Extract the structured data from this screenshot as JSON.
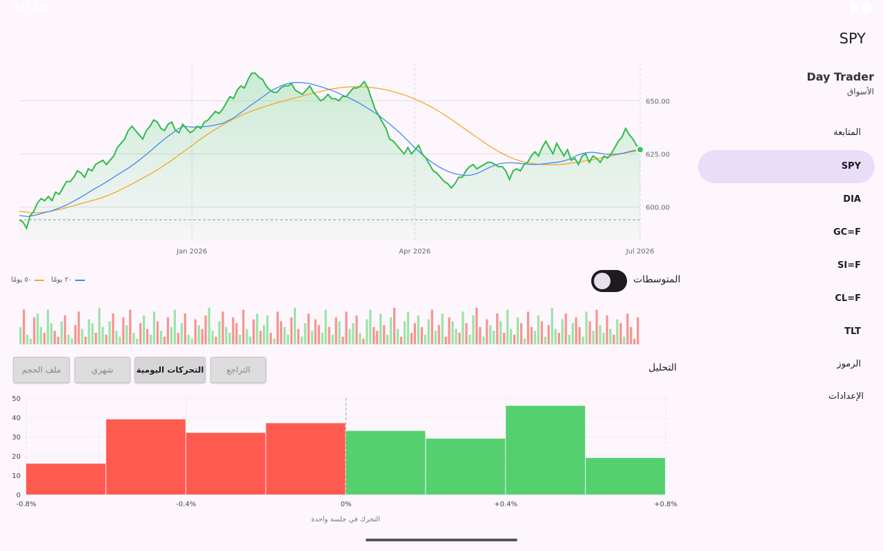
{
  "status": {
    "time": "8:11 AM"
  },
  "sidebar": {
    "page_title": "SPY",
    "brand_title": "Day Trader",
    "brand_sub": "الأسواق",
    "items": [
      {
        "label": "المتابعة",
        "active": false
      },
      {
        "label": "SPY",
        "active": true
      },
      {
        "label": "DIA",
        "active": false
      },
      {
        "label": "GC=F",
        "active": false
      },
      {
        "label": "SI=F",
        "active": false
      },
      {
        "label": "CL=F",
        "active": false
      },
      {
        "label": "TLT",
        "active": false
      },
      {
        "label": "الرموز",
        "active": false
      },
      {
        "label": "الإعدادات",
        "active": false
      }
    ]
  },
  "legend": {
    "ma50": "٥٠ يومًا",
    "ma20": "٢٠ يومًا",
    "ma50_color": "#f5a623",
    "ma20_color": "#4285f4"
  },
  "moving_averages": {
    "label": "المتوسطات",
    "enabled": true
  },
  "analysis": {
    "label": "التحليل",
    "chips": [
      {
        "label": "التراجع",
        "selected": false
      },
      {
        "label": "التحركات اليومية",
        "selected": true
      },
      {
        "label": "شهري",
        "selected": false
      },
      {
        "label": "ملف الحجم",
        "selected": false
      }
    ]
  },
  "colors": {
    "up": "#34c759",
    "down": "#ff3b30",
    "price_line": "#2dbb4a"
  },
  "chart_data": [
    {
      "type": "line",
      "x_tick_labels": [
        "Jan 2026",
        "Apr 2026",
        "Jul 2026"
      ],
      "y_tick_labels": [
        "600.00",
        "625.00",
        "650.00"
      ],
      "ylim": [
        584,
        665
      ],
      "reference_line": 594,
      "series": [
        {
          "name": "",
          "values": [
            594,
            593,
            590,
            596,
            598,
            602,
            604,
            603,
            605,
            603,
            607,
            606,
            609,
            612,
            612,
            614,
            617,
            616,
            614,
            618,
            617,
            620,
            621,
            622,
            620,
            622,
            624,
            628,
            630,
            632,
            636,
            638,
            636,
            634,
            632,
            636,
            638,
            641,
            640,
            637,
            636,
            639,
            640,
            636,
            635,
            639,
            637,
            635,
            636,
            638,
            637,
            640,
            641,
            643,
            645,
            644,
            646,
            649,
            652,
            651,
            655,
            657,
            656,
            660,
            663,
            663,
            661,
            660,
            657,
            655,
            654,
            654,
            656,
            657,
            657,
            658,
            655,
            654,
            653,
            655,
            657,
            654,
            652,
            650,
            651,
            653,
            651,
            651,
            650,
            652,
            652,
            654,
            656,
            656,
            657,
            659,
            656,
            651,
            646,
            643,
            640,
            637,
            632,
            631,
            629,
            627,
            625,
            628,
            625,
            627,
            629,
            625,
            623,
            620,
            617,
            616,
            614,
            612,
            611,
            609,
            611,
            614,
            614,
            617,
            619,
            620,
            618,
            619,
            620,
            621,
            621,
            620,
            619,
            619,
            617,
            613,
            617,
            618,
            617,
            620,
            621,
            624,
            626,
            624,
            628,
            631,
            628,
            625,
            630,
            627,
            624,
            627,
            622,
            623,
            620,
            624,
            625,
            621,
            624,
            623,
            621,
            624,
            623,
            625,
            628,
            631,
            633,
            637,
            634,
            632,
            629,
            627
          ]
        },
        {
          "name": "",
          "values": [
            596,
            595.8,
            595.5,
            596,
            596.4,
            597,
            597.6,
            598,
            598.8,
            599.5,
            600.4,
            601.3,
            602.5,
            603.6,
            604.8,
            606,
            607.4,
            608.6,
            609.8,
            611,
            612.3,
            613.6,
            615,
            616.3,
            617.5,
            618.9,
            620.4,
            622,
            623.7,
            625.4,
            627.2,
            629,
            630.8,
            632.4,
            634,
            635.5,
            637,
            638,
            637.8,
            637.6,
            637.7,
            637.8,
            637.9,
            638.1,
            638.5,
            639,
            639.5,
            640.5,
            641.5,
            643,
            644.5,
            646,
            647.6,
            649,
            650.5,
            652,
            653.5,
            655,
            656,
            657,
            657.8,
            658.3,
            658.6,
            658.6,
            658.5,
            658.2,
            657.8,
            657.2,
            656.6,
            655.9,
            655.2,
            654.4,
            653.5,
            652.6,
            651.7,
            650.7,
            649.6,
            648.5,
            647.2,
            645.9,
            644.6,
            643.2,
            641.6,
            639.9,
            638.2,
            636.4,
            634.5,
            632.5,
            630.4,
            628.3,
            626.3,
            624.4,
            622.7,
            621.1,
            619.7,
            618.5,
            617.4,
            616.5,
            615.8,
            615.3,
            615,
            614.8,
            615.1,
            615.7,
            616.5,
            617.6,
            618.6,
            619.5,
            620.2,
            620.6,
            620.8,
            620.8,
            620.7,
            620.5,
            620.3,
            620.1,
            620,
            620.1,
            620.3,
            620.5,
            620.8,
            621,
            621.3,
            621.8,
            622.5,
            623.5,
            624.5,
            625.2,
            625.6,
            625.8,
            625.6,
            625.3,
            625,
            624.8,
            624.8,
            625,
            625.3,
            625.8,
            626.3,
            626.7,
            627
          ]
        },
        {
          "name": "",
          "values": [
            598,
            597.7,
            597.4,
            597.3,
            597.4,
            597.7,
            598.1,
            598.6,
            599.2,
            599.9,
            600.6,
            601.3,
            602,
            602.7,
            603.4,
            604.2,
            605.1,
            606.1,
            607.2,
            608.4,
            609.7,
            611,
            612.4,
            613.8,
            615.2,
            616.6,
            618.2,
            619.9,
            621.6,
            623.4,
            625.3,
            627.1,
            629,
            630.9,
            632.7,
            634.4,
            636.1,
            637.6,
            639.1,
            640.5,
            641.8,
            643,
            644.1,
            645.1,
            646,
            646.9,
            647.7,
            648.5,
            649.2,
            649.9,
            650.6,
            651.3,
            652,
            652.6,
            653.3,
            653.9,
            654.5,
            655.1,
            655.6,
            656,
            656.3,
            656.5,
            656.6,
            656.6,
            656.5,
            656.3,
            656,
            655.6,
            655.1,
            654.5,
            653.8,
            653,
            652.1,
            651.1,
            650,
            648.8,
            647.5,
            646.1,
            644.6,
            643,
            641.3,
            639.5,
            637.7,
            635.9,
            634.1,
            632.3,
            630.6,
            628.9,
            627.3,
            625.8,
            624.5,
            623.3,
            622.3,
            621.5,
            620.9,
            620.5,
            620.2,
            620,
            619.9,
            619.9,
            620,
            620.2,
            620.5,
            620.9,
            621.3,
            621.8,
            622.2,
            622.7,
            623.2,
            623.7,
            624.3,
            624.8,
            625.3,
            625.8,
            626.2,
            626.5
          ]
        }
      ]
    },
    {
      "type": "bar",
      "values": [
        0.45,
        0.9,
        0.25,
        0.15,
        0.7,
        0.8,
        0.45,
        0.3,
        0.9,
        0.55,
        0.35,
        0.2,
        0.6,
        0.75,
        0.25,
        0.15,
        0.5,
        0.85,
        0.4,
        0.2,
        0.65,
        0.55,
        0.3,
        0.95,
        0.45,
        0.25,
        0.6,
        0.8,
        0.35,
        0.2,
        0.7,
        0.5,
        0.9,
        0.3,
        0.15,
        0.55,
        0.75,
        0.4,
        0.25,
        0.85,
        0.6,
        0.35,
        0.2,
        0.7,
        0.45,
        0.9,
        0.3,
        0.55,
        0.8,
        0.25,
        0.15,
        0.65,
        0.5,
        0.4,
        0.75,
        0.95,
        0.35,
        0.2,
        0.6,
        0.85,
        0.45,
        0.3,
        0.7,
        0.55,
        0.25,
        0.9,
        0.4,
        0.2,
        0.65,
        0.8,
        0.35,
        0.5,
        0.75,
        0.3,
        0.15,
        0.85,
        0.6,
        0.45,
        0.25,
        0.7,
        0.95,
        0.4,
        0.2,
        0.55,
        0.8,
        0.35,
        0.65,
        0.5,
        0.3,
        0.9,
        0.45,
        0.25,
        0.7,
        0.6,
        0.2,
        0.85,
        0.4,
        0.55,
        0.75,
        0.3,
        0.15,
        0.65,
        0.9,
        0.45,
        0.35,
        0.8,
        0.5,
        0.25,
        0.7,
        0.95,
        0.4,
        0.2,
        0.6,
        0.85,
        0.3,
        0.55,
        0.75,
        0.45,
        0.25,
        0.65,
        0.9,
        0.35,
        0.5,
        0.8,
        0.2,
        0.7,
        0.6,
        0.4,
        0.3,
        0.85,
        0.55,
        0.25,
        0.75,
        0.95,
        0.45,
        0.2,
        0.65,
        0.5,
        0.35,
        0.8,
        0.6,
        0.3,
        0.9,
        0.4,
        0.25,
        0.7,
        0.55,
        0.15,
        0.85,
        0.45,
        0.35,
        0.75,
        0.6,
        0.2,
        0.5,
        0.95,
        0.4,
        0.3,
        0.65,
        0.8,
        0.25,
        0.55,
        0.7,
        0.45,
        0.2,
        0.85,
        0.6,
        0.35,
        0.9,
        0.5,
        0.3,
        0.75,
        0.4,
        0.25,
        0.65,
        0.55,
        0.2,
        0.8,
        0.45,
        0.15,
        0.7
      ],
      "up": [
        1,
        0,
        1,
        1,
        0,
        1,
        1,
        0,
        1,
        1,
        0,
        0,
        1,
        0,
        1,
        1,
        0,
        0,
        1,
        0,
        1,
        1,
        0,
        1,
        1,
        0,
        1,
        0,
        1,
        1,
        0,
        1,
        0,
        1,
        1,
        0,
        1,
        0,
        1,
        1,
        0,
        1,
        0,
        0,
        1,
        1,
        0,
        1,
        0,
        1,
        1,
        0,
        1,
        0,
        0,
        1,
        1,
        0,
        1,
        0,
        1,
        1,
        0,
        0,
        1,
        0,
        1,
        1,
        0,
        1,
        0,
        1,
        1,
        0,
        1,
        0,
        0,
        1,
        1,
        0,
        1,
        0,
        1,
        1,
        0,
        1,
        0,
        0,
        1,
        1,
        0,
        1,
        0,
        1,
        0,
        0,
        1,
        1,
        0,
        1,
        0,
        1,
        1,
        0,
        0,
        1,
        0,
        1,
        1,
        0,
        1,
        0,
        1,
        1,
        0,
        0,
        1,
        0,
        1,
        1,
        0,
        1,
        0,
        1,
        0,
        0,
        1,
        1,
        0,
        1,
        0,
        1,
        1,
        0,
        0,
        1,
        0,
        1,
        1,
        0,
        1,
        0,
        1,
        1,
        0,
        1,
        0,
        1,
        0,
        0,
        1,
        1,
        0,
        1,
        0,
        1,
        1,
        0,
        1,
        0,
        1,
        1,
        0,
        0,
        1,
        1,
        0,
        1,
        0,
        1,
        1,
        0,
        1,
        0,
        1,
        0,
        1,
        0
      ]
    },
    {
      "type": "bar",
      "xlabel": "التحرك في جلسة واحدة",
      "x_tick_labels": [
        "-0.8%",
        "-0.4%",
        "0%",
        "+0.4%",
        "+0.8%"
      ],
      "y_tick_labels": [
        "0",
        "10",
        "20",
        "30",
        "40",
        "50"
      ],
      "ylim": [
        0,
        50
      ],
      "bins": [
        {
          "from": -0.8,
          "to": -0.6,
          "value": 16,
          "up": false
        },
        {
          "from": -0.6,
          "to": -0.4,
          "value": 39,
          "up": false
        },
        {
          "from": -0.4,
          "to": -0.2,
          "value": 32,
          "up": false
        },
        {
          "from": -0.2,
          "to": 0.0,
          "value": 37,
          "up": false
        },
        {
          "from": 0.0,
          "to": 0.2,
          "value": 33,
          "up": true
        },
        {
          "from": 0.2,
          "to": 0.4,
          "value": 29,
          "up": true
        },
        {
          "from": 0.4,
          "to": 0.6,
          "value": 46,
          "up": true
        },
        {
          "from": 0.6,
          "to": 0.8,
          "value": 19,
          "up": true
        }
      ]
    }
  ]
}
